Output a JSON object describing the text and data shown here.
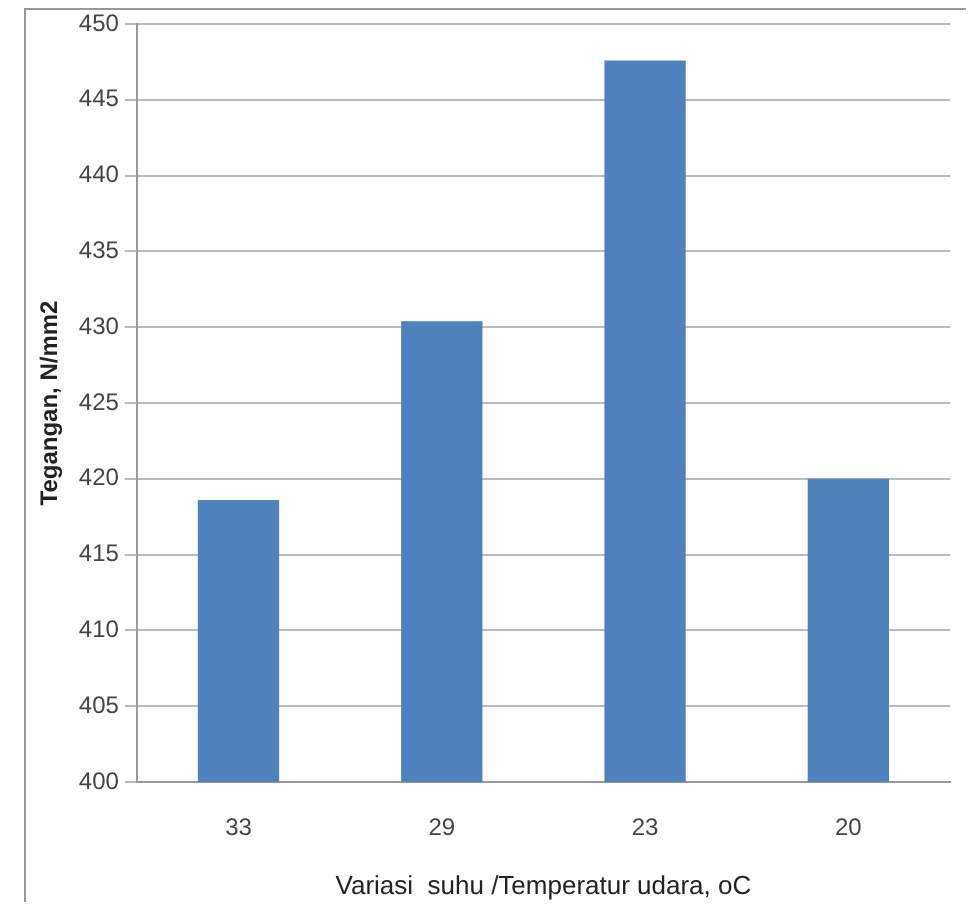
{
  "chart_data": {
    "type": "bar",
    "xlabel": "Variasi  suhu /Temperatur udara, oC",
    "ylabel": "Tegangan, N/mm2",
    "categories": [
      "33",
      "29",
      "23",
      "20"
    ],
    "values": [
      418.6,
      430.4,
      447.6,
      420.0
    ],
    "color": "#4f81bd",
    "ylim": [
      400,
      450
    ],
    "yticks": [
      400,
      405,
      410,
      415,
      420,
      425,
      430,
      435,
      440,
      445,
      450
    ],
    "grid": "y",
    "legend": false
  }
}
